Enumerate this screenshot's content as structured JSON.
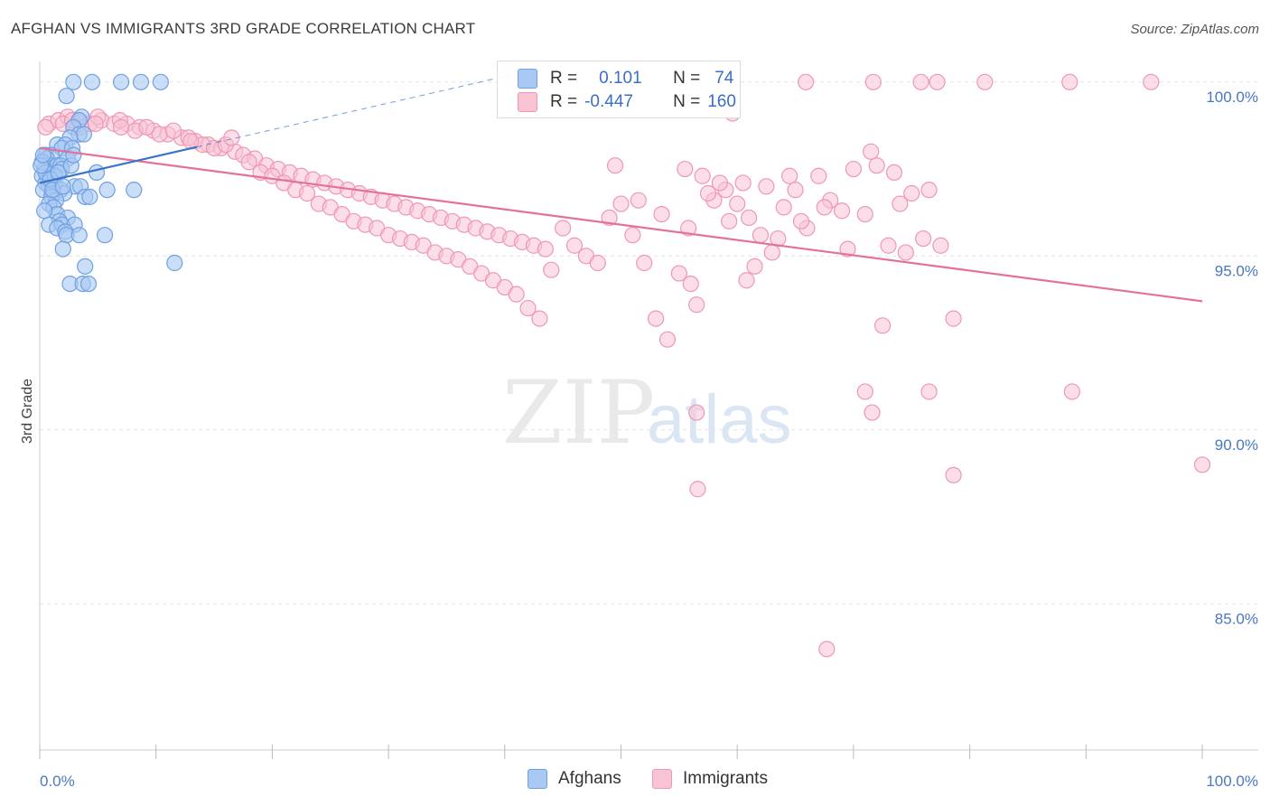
{
  "header": {
    "title": "AFGHAN VS IMMIGRANTS 3RD GRADE CORRELATION CHART",
    "source": "Source: ZipAtlas.com"
  },
  "watermark": {
    "zip": "ZIP",
    "atlas": "atlas"
  },
  "legend_top": {
    "rows": [
      {
        "r_label": "R =",
        "r_value": "0.101",
        "n_label": "N =",
        "n_value": "74"
      },
      {
        "r_label": "R =",
        "r_value": "-0.447",
        "n_label": "N =",
        "n_value": "160"
      }
    ]
  },
  "legend_bottom": {
    "afghans": "Afghans",
    "immigrants": "Immigrants"
  },
  "colors": {
    "afghans_fill": "#a9c8f3",
    "afghans_stroke": "#6fa0e0",
    "afghans_line": "#3a74c9",
    "immigrants_fill": "#f8c3d3",
    "immigrants_stroke": "#ef97b4",
    "immigrants_line": "#e4719b",
    "tick_text": "#4a78c2",
    "grid": "#e3e3e3"
  },
  "chart_data": {
    "type": "scatter",
    "title": "AFGHAN VS IMMIGRANTS 3RD GRADE CORRELATION CHART",
    "ylabel": "3rd Grade",
    "xlabel": "",
    "xlim": [
      0,
      100
    ],
    "ylim": [
      80.8,
      100.8
    ],
    "x_tick_labels": [
      "0.0%",
      "100.0%"
    ],
    "y_ticks": [
      {
        "value": 100.0,
        "label": "100.0%"
      },
      {
        "value": 95.0,
        "label": "95.0%"
      },
      {
        "value": 90.0,
        "label": "90.0%"
      },
      {
        "value": 85.0,
        "label": "85.0%"
      }
    ],
    "grid": true,
    "series": [
      {
        "name": "Afghans",
        "r": 0.101,
        "n": 74,
        "trend": {
          "x": [
            0,
            40.5
          ],
          "y": [
            97.1,
            100.2
          ],
          "solid_until_x": 13.5
        },
        "points": [
          [
            2.9,
            100
          ],
          [
            4.5,
            100
          ],
          [
            7,
            100
          ],
          [
            8.7,
            100
          ],
          [
            10.4,
            100
          ],
          [
            2.3,
            99.6
          ],
          [
            3.6,
            99
          ],
          [
            3.4,
            98.9
          ],
          [
            2.9,
            98.7
          ],
          [
            3.4,
            98.5
          ],
          [
            3.8,
            98.5
          ],
          [
            2.6,
            98.4
          ],
          [
            1.5,
            98.2
          ],
          [
            2.2,
            98.2
          ],
          [
            1.9,
            98.1
          ],
          [
            2.8,
            98.1
          ],
          [
            0.5,
            97.9
          ],
          [
            1,
            97.9
          ],
          [
            0.6,
            97.8
          ],
          [
            2.4,
            97.8
          ],
          [
            0.9,
            97.6
          ],
          [
            1.5,
            97.6
          ],
          [
            1.8,
            97.6
          ],
          [
            0.4,
            97.5
          ],
          [
            1.9,
            97.5
          ],
          [
            4.9,
            97.4
          ],
          [
            0.2,
            97.3
          ],
          [
            0.7,
            97.2
          ],
          [
            0.5,
            97.1
          ],
          [
            1.3,
            97.1
          ],
          [
            0.8,
            97.0
          ],
          [
            3.0,
            97.0
          ],
          [
            3.5,
            97.0
          ],
          [
            0.3,
            96.9
          ],
          [
            1.8,
            96.9
          ],
          [
            5.8,
            96.9
          ],
          [
            8.1,
            96.9
          ],
          [
            1.1,
            96.8
          ],
          [
            2.1,
            96.8
          ],
          [
            1.0,
            96.7
          ],
          [
            3.9,
            96.7
          ],
          [
            4.3,
            96.7
          ],
          [
            1.4,
            96.6
          ],
          [
            0.8,
            96.5
          ],
          [
            1.2,
            96.4
          ],
          [
            1.5,
            96.2
          ],
          [
            2.4,
            96.1
          ],
          [
            1.7,
            96.0
          ],
          [
            0.8,
            95.9
          ],
          [
            1.9,
            95.9
          ],
          [
            3.0,
            95.9
          ],
          [
            1.5,
            95.8
          ],
          [
            2.2,
            95.7
          ],
          [
            2.3,
            95.6
          ],
          [
            3.4,
            95.6
          ],
          [
            5.6,
            95.6
          ],
          [
            2.0,
            95.2
          ],
          [
            3.9,
            94.7
          ],
          [
            11.6,
            94.8
          ],
          [
            2.6,
            94.2
          ],
          [
            3.7,
            94.2
          ],
          [
            4.2,
            94.2
          ],
          [
            0.2,
            97.7
          ],
          [
            0.5,
            97.4
          ],
          [
            1.3,
            97.3
          ],
          [
            0.1,
            97.6
          ],
          [
            0.3,
            97.9
          ],
          [
            0.9,
            97.2
          ],
          [
            1.6,
            97.4
          ],
          [
            2.7,
            97.6
          ],
          [
            0.4,
            96.3
          ],
          [
            2.9,
            97.9
          ],
          [
            1.1,
            96.9
          ],
          [
            2.0,
            97.0
          ]
        ]
      },
      {
        "name": "Immigrants",
        "r": -0.447,
        "n": 160,
        "trend": {
          "x": [
            0,
            100
          ],
          "y": [
            98.1,
            93.7
          ]
        },
        "points": [
          [
            65.9,
            100
          ],
          [
            71.7,
            100
          ],
          [
            75.8,
            100
          ],
          [
            77.2,
            100
          ],
          [
            81.3,
            100
          ],
          [
            88.6,
            100
          ],
          [
            95.6,
            100
          ],
          [
            59.6,
            99.1
          ],
          [
            0.8,
            98.8
          ],
          [
            1.6,
            98.9
          ],
          [
            2.4,
            99.0
          ],
          [
            3.3,
            98.9
          ],
          [
            4.3,
            98.8
          ],
          [
            5.3,
            98.9
          ],
          [
            6.4,
            98.8
          ],
          [
            7.5,
            98.8
          ],
          [
            8.6,
            98.7
          ],
          [
            9.8,
            98.6
          ],
          [
            11,
            98.5
          ],
          [
            12.2,
            98.4
          ],
          [
            13.4,
            98.3
          ],
          [
            14.5,
            98.2
          ],
          [
            15.6,
            98.1
          ],
          [
            16.8,
            98.0
          ],
          [
            2.0,
            98.8
          ],
          [
            3.6,
            98.7
          ],
          [
            5.0,
            99.0
          ],
          [
            6.9,
            98.9
          ],
          [
            8.2,
            98.6
          ],
          [
            10.3,
            98.5
          ],
          [
            12.8,
            98.4
          ],
          [
            14,
            98.2
          ],
          [
            0.5,
            98.7
          ],
          [
            2.8,
            98.9
          ],
          [
            4.8,
            98.8
          ],
          [
            7.0,
            98.7
          ],
          [
            9.2,
            98.7
          ],
          [
            11.5,
            98.6
          ],
          [
            13.0,
            98.3
          ],
          [
            15.0,
            98.1
          ],
          [
            16.0,
            98.2
          ],
          [
            17.5,
            97.9
          ],
          [
            18.5,
            97.8
          ],
          [
            19.5,
            97.6
          ],
          [
            20.5,
            97.5
          ],
          [
            21.5,
            97.4
          ],
          [
            22.5,
            97.3
          ],
          [
            23.5,
            97.2
          ],
          [
            24.5,
            97.1
          ],
          [
            25.5,
            97.0
          ],
          [
            26.5,
            96.9
          ],
          [
            27.5,
            96.8
          ],
          [
            28.5,
            96.7
          ],
          [
            29.5,
            96.6
          ],
          [
            30.5,
            96.5
          ],
          [
            31.5,
            96.4
          ],
          [
            32.5,
            96.3
          ],
          [
            33.5,
            96.2
          ],
          [
            34.5,
            96.1
          ],
          [
            35.5,
            96.0
          ],
          [
            36.5,
            95.9
          ],
          [
            37.5,
            95.8
          ],
          [
            38.5,
            95.7
          ],
          [
            39.5,
            95.6
          ],
          [
            40.5,
            95.5
          ],
          [
            41.5,
            95.4
          ],
          [
            42.5,
            95.3
          ],
          [
            43.5,
            95.2
          ],
          [
            16.5,
            98.4
          ],
          [
            18.0,
            97.7
          ],
          [
            19.0,
            97.4
          ],
          [
            20.0,
            97.3
          ],
          [
            21.0,
            97.1
          ],
          [
            22.0,
            96.9
          ],
          [
            23.0,
            96.8
          ],
          [
            24.0,
            96.5
          ],
          [
            25.0,
            96.4
          ],
          [
            26.0,
            96.2
          ],
          [
            27.0,
            96.0
          ],
          [
            28.0,
            95.9
          ],
          [
            29.0,
            95.8
          ],
          [
            30.0,
            95.6
          ],
          [
            31.0,
            95.5
          ],
          [
            32.0,
            95.4
          ],
          [
            33.0,
            95.3
          ],
          [
            34.0,
            95.1
          ],
          [
            35.0,
            95.0
          ],
          [
            36.0,
            94.9
          ],
          [
            37.0,
            94.7
          ],
          [
            38.0,
            94.5
          ],
          [
            39.0,
            94.3
          ],
          [
            40.0,
            94.1
          ],
          [
            41.0,
            93.9
          ],
          [
            42.0,
            93.5
          ],
          [
            43.0,
            93.2
          ],
          [
            44.0,
            94.6
          ],
          [
            45.0,
            95.8
          ],
          [
            46.0,
            95.3
          ],
          [
            47.0,
            95.0
          ],
          [
            48.0,
            94.8
          ],
          [
            49.0,
            96.1
          ],
          [
            50.0,
            96.5
          ],
          [
            51.0,
            95.6
          ],
          [
            52.0,
            94.8
          ],
          [
            53.0,
            93.2
          ],
          [
            54.0,
            92.6
          ],
          [
            55.0,
            94.5
          ],
          [
            56.0,
            94.2
          ],
          [
            57.0,
            97.3
          ],
          [
            58.0,
            96.6
          ],
          [
            59.0,
            96.9
          ],
          [
            60.0,
            96.5
          ],
          [
            61.0,
            96.1
          ],
          [
            62.0,
            95.6
          ],
          [
            63.0,
            95.1
          ],
          [
            64.0,
            96.4
          ],
          [
            65.0,
            96.9
          ],
          [
            66.0,
            95.8
          ],
          [
            67.0,
            97.3
          ],
          [
            68.0,
            96.6
          ],
          [
            69.0,
            96.3
          ],
          [
            70.0,
            97.5
          ],
          [
            71.0,
            96.2
          ],
          [
            72.0,
            97.6
          ],
          [
            73.0,
            95.3
          ],
          [
            74.0,
            96.5
          ],
          [
            75.0,
            96.8
          ],
          [
            76.0,
            95.5
          ],
          [
            49.5,
            97.6
          ],
          [
            55.5,
            97.5
          ],
          [
            58.5,
            97.1
          ],
          [
            60.5,
            97.1
          ],
          [
            62.5,
            97.0
          ],
          [
            64.5,
            97.3
          ],
          [
            71.5,
            98.0
          ],
          [
            73.5,
            97.4
          ],
          [
            76.5,
            96.9
          ],
          [
            51.5,
            96.6
          ],
          [
            53.5,
            96.2
          ],
          [
            55.8,
            95.8
          ],
          [
            57.5,
            96.8
          ],
          [
            59.3,
            96.0
          ],
          [
            61.5,
            94.7
          ],
          [
            63.5,
            95.5
          ],
          [
            65.5,
            96.0
          ],
          [
            67.5,
            96.4
          ],
          [
            69.5,
            95.2
          ],
          [
            72.5,
            93.0
          ],
          [
            74.5,
            95.1
          ],
          [
            77.5,
            95.3
          ],
          [
            56.5,
            93.6
          ],
          [
            60.8,
            94.3
          ],
          [
            71.0,
            91.1
          ],
          [
            76.5,
            91.1
          ],
          [
            71.6,
            90.5
          ],
          [
            78.6,
            93.2
          ],
          [
            78.6,
            88.7
          ],
          [
            88.8,
            91.1
          ],
          [
            100,
            89.0
          ],
          [
            56.5,
            90.5
          ],
          [
            56.6,
            88.3
          ],
          [
            67.7,
            83.7
          ]
        ]
      }
    ]
  }
}
